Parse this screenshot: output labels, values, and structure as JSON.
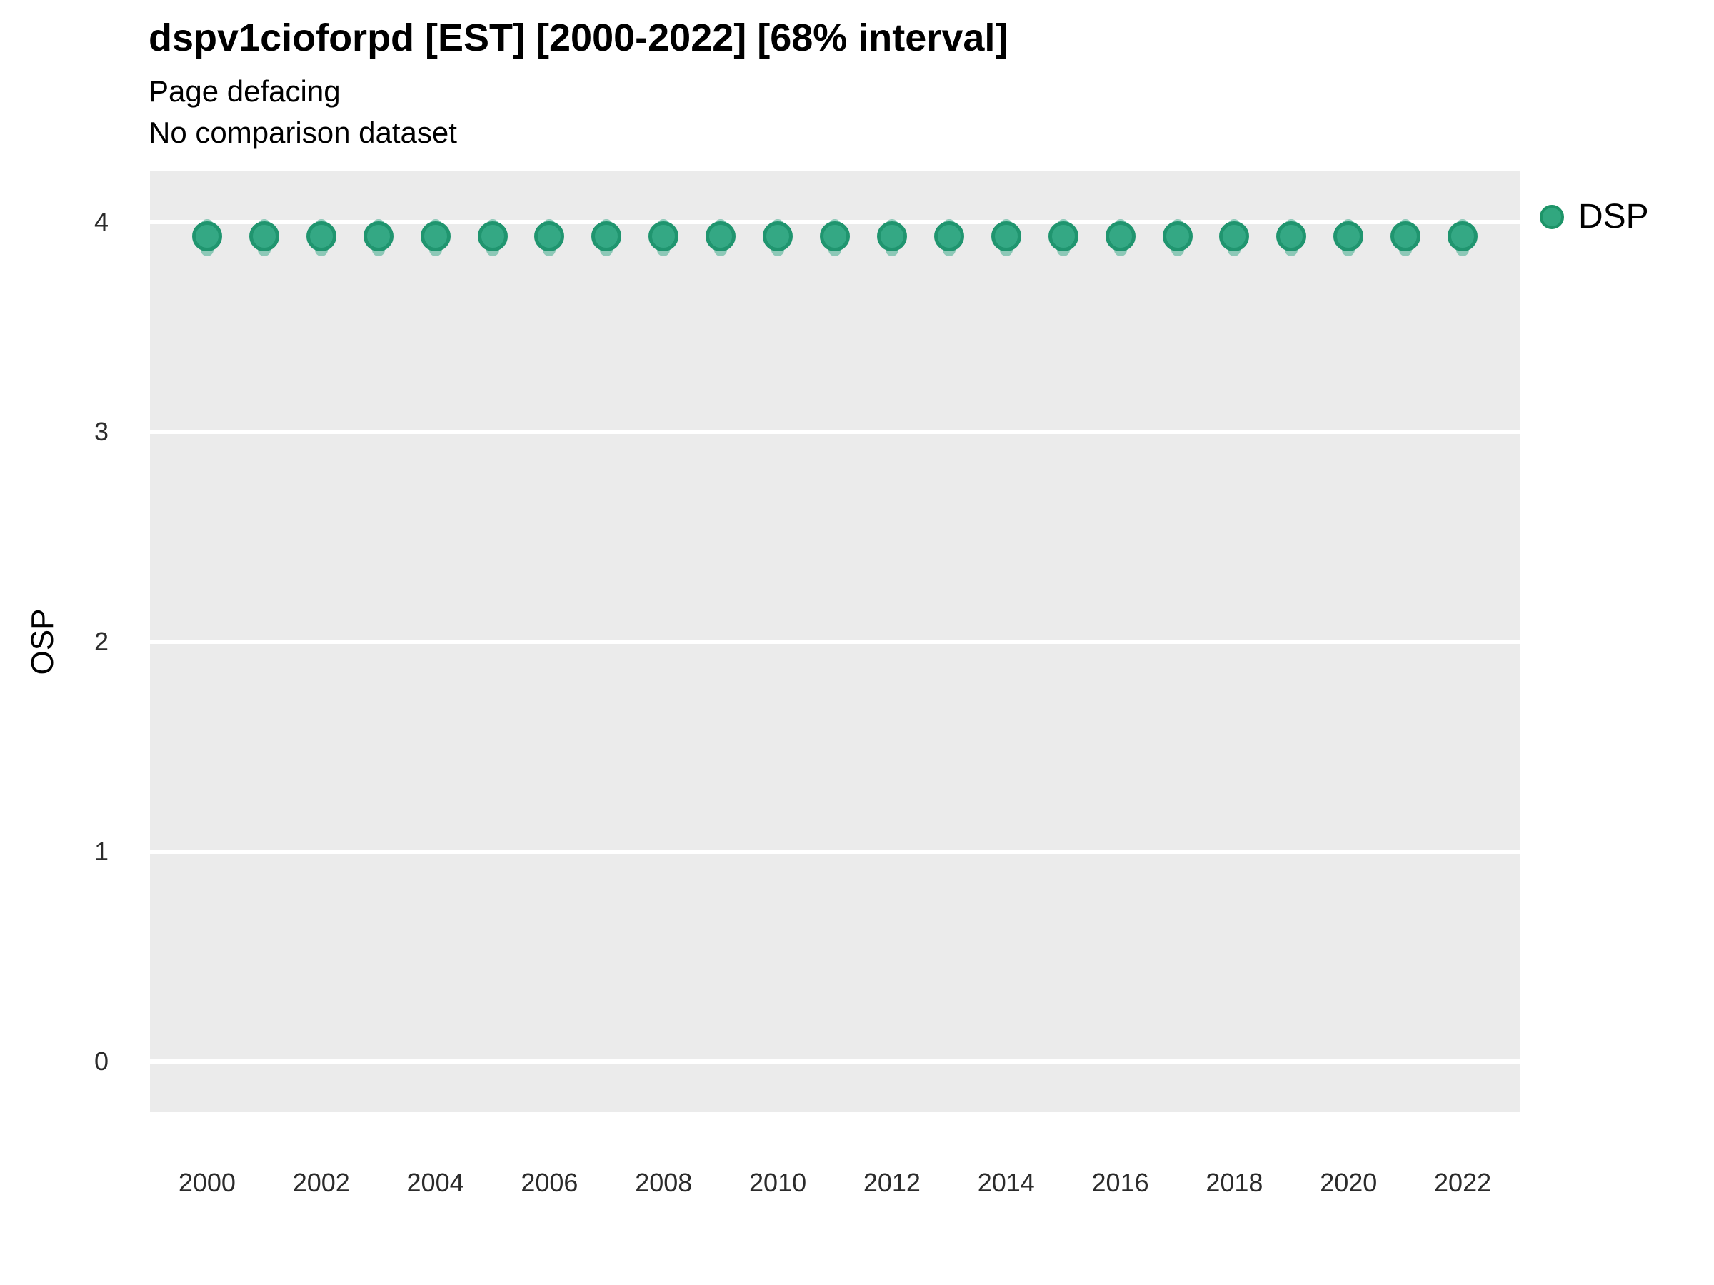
{
  "header": {
    "title": "dspv1cioforpd [EST] [2000-2022] [68% interval]",
    "subtitle_line1": "Page defacing",
    "subtitle_line2": "No comparison dataset"
  },
  "axes": {
    "y_label": "OSP",
    "y_tick_labels": [
      "0",
      "1",
      "2",
      "3",
      "4"
    ],
    "x_tick_labels": [
      "2000",
      "2002",
      "2004",
      "2006",
      "2008",
      "2010",
      "2012",
      "2014",
      "2016",
      "2018",
      "2020",
      "2022"
    ]
  },
  "legend": {
    "label": "DSP",
    "swatch_color": "#31A77F",
    "swatch_border_color": "#1D9468"
  },
  "colors": {
    "panel_background": "#EBEBEB",
    "gridline": "#FFFFFF",
    "point_fill": "#34A884",
    "point_border": "#20956F",
    "interval_base": "#1B9E77",
    "interval_alpha": 0.45,
    "text": "#000000",
    "tick_text": "#2B2B2B"
  },
  "chart_data": {
    "type": "scatter",
    "title": "dspv1cioforpd [EST] [2000-2022] [68% interval]",
    "subtitle": [
      "Page defacing",
      "No comparison dataset"
    ],
    "xlabel": "",
    "ylabel": "OSP",
    "grid": "horizontal major gridlines only, white on gray panel",
    "legend_position": "right-top",
    "x_ticks": [
      2000,
      2002,
      2004,
      2006,
      2008,
      2010,
      2012,
      2014,
      2016,
      2018,
      2020,
      2022
    ],
    "y_ticks": [
      0,
      1,
      2,
      3,
      4
    ],
    "xlim": [
      1999,
      2023
    ],
    "ylim": [
      -0.24,
      4.24
    ],
    "series": [
      {
        "name": "DSP",
        "marker": "filled-circle-with-interval-band",
        "x": [
          2000,
          2001,
          2002,
          2003,
          2004,
          2005,
          2006,
          2007,
          2008,
          2009,
          2010,
          2011,
          2012,
          2013,
          2014,
          2015,
          2016,
          2017,
          2018,
          2019,
          2020,
          2021,
          2022
        ],
        "y": [
          3.93,
          3.93,
          3.93,
          3.93,
          3.93,
          3.93,
          3.93,
          3.93,
          3.93,
          3.93,
          3.93,
          3.93,
          3.93,
          3.93,
          3.93,
          3.93,
          3.93,
          3.93,
          3.93,
          3.93,
          3.93,
          3.93,
          3.93
        ],
        "interval_low": [
          3.85,
          3.85,
          3.85,
          3.85,
          3.85,
          3.85,
          3.85,
          3.85,
          3.85,
          3.85,
          3.85,
          3.85,
          3.85,
          3.85,
          3.85,
          3.85,
          3.85,
          3.85,
          3.85,
          3.85,
          3.85,
          3.85,
          3.85
        ],
        "interval_high": [
          4.0,
          4.0,
          4.0,
          4.0,
          4.0,
          4.0,
          4.0,
          4.0,
          4.0,
          4.0,
          4.0,
          4.0,
          4.0,
          4.0,
          4.0,
          4.0,
          4.0,
          4.0,
          4.0,
          4.0,
          4.0,
          4.0,
          4.0
        ]
      }
    ]
  }
}
